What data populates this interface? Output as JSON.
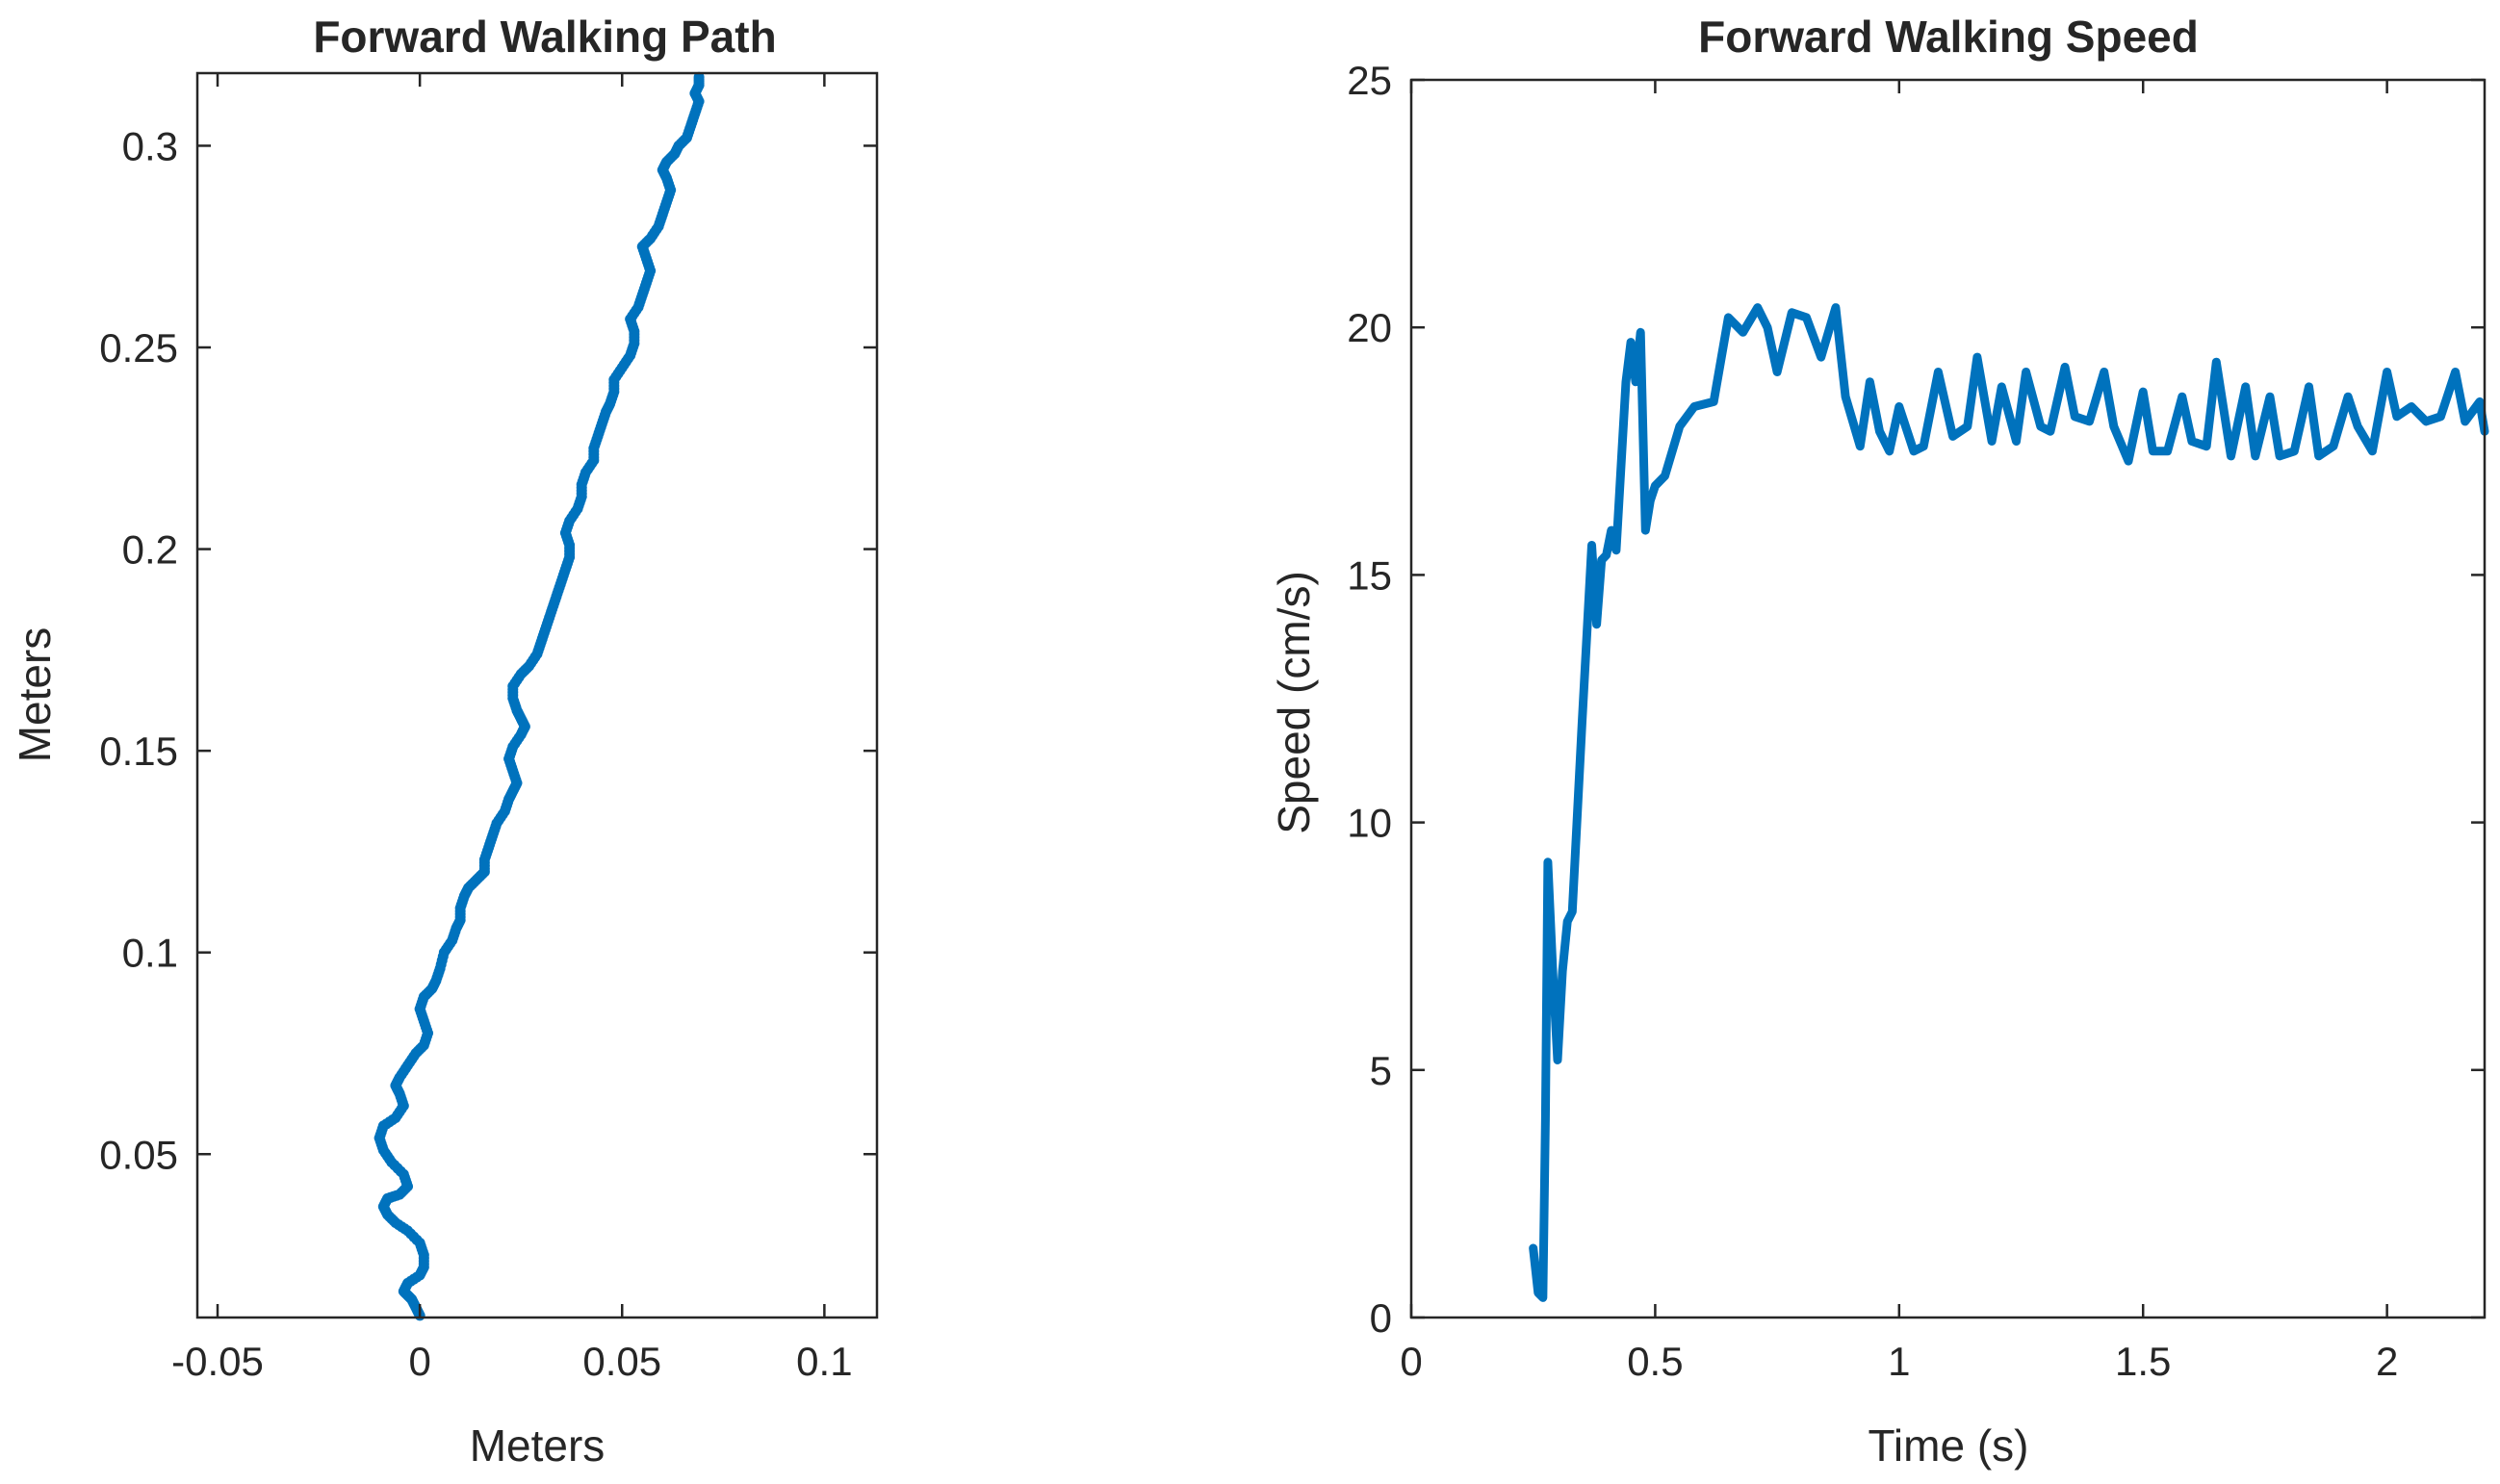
{
  "colors": {
    "series": "#0072BD",
    "axis": "#262626",
    "background": "#ffffff"
  },
  "chart_data": [
    {
      "type": "scatter",
      "title": "Forward Walking Path",
      "xlabel": "Meters",
      "ylabel": "Meters",
      "xlim": [
        -0.055,
        0.113
      ],
      "ylim": [
        0.0095,
        0.318
      ],
      "xticks": [
        -0.05,
        0,
        0.05,
        0.1
      ],
      "xtick_labels": [
        "-0.05",
        "0",
        "0.05",
        "0.1"
      ],
      "yticks": [
        0.05,
        0.1,
        0.15,
        0.2,
        0.25,
        0.3
      ],
      "ytick_labels": [
        "0.05",
        "0.1",
        "0.15",
        "0.2",
        "0.25",
        "0.3"
      ],
      "grid": false,
      "legend": "none",
      "series": [
        {
          "color": "#0072BD",
          "x": [
            0.0,
            -0.001,
            -0.002,
            -0.003,
            -0.004,
            -0.003,
            0.0,
            0.001,
            0.001,
            0.0,
            -0.003,
            -0.006,
            -0.008,
            -0.009,
            -0.008,
            -0.005,
            -0.003,
            -0.004,
            -0.007,
            -0.009,
            -0.01,
            -0.009,
            -0.006,
            -0.004,
            -0.005,
            -0.006,
            -0.005,
            -0.003,
            -0.001,
            0.001,
            0.002,
            0.001,
            0.0,
            0.001,
            0.003,
            0.004,
            0.005,
            0.006,
            0.008,
            0.009,
            0.01,
            0.01,
            0.011,
            0.012,
            0.014,
            0.016,
            0.016,
            0.017,
            0.018,
            0.019,
            0.021,
            0.022,
            0.023,
            0.024,
            0.023,
            0.022,
            0.023,
            0.025,
            0.026,
            0.025,
            0.024,
            0.023,
            0.023,
            0.025,
            0.027,
            0.029,
            0.03,
            0.031,
            0.032,
            0.033,
            0.034,
            0.035,
            0.036,
            0.037,
            0.037,
            0.036,
            0.037,
            0.039,
            0.04,
            0.04,
            0.041,
            0.043,
            0.043,
            0.044,
            0.045,
            0.046,
            0.047,
            0.048,
            0.048,
            0.05,
            0.052,
            0.053,
            0.053,
            0.052,
            0.054,
            0.055,
            0.056,
            0.057,
            0.056,
            0.055,
            0.057,
            0.059,
            0.06,
            0.061,
            0.062,
            0.061,
            0.06,
            0.061,
            0.063,
            0.064,
            0.066,
            0.067,
            0.068,
            0.069,
            0.068,
            0.069,
            0.069
          ],
          "y": [
            0.01,
            0.012,
            0.014,
            0.015,
            0.016,
            0.018,
            0.02,
            0.022,
            0.025,
            0.028,
            0.031,
            0.033,
            0.035,
            0.037,
            0.039,
            0.04,
            0.042,
            0.045,
            0.048,
            0.051,
            0.054,
            0.057,
            0.059,
            0.062,
            0.065,
            0.067,
            0.069,
            0.072,
            0.075,
            0.077,
            0.08,
            0.083,
            0.086,
            0.089,
            0.091,
            0.093,
            0.096,
            0.1,
            0.103,
            0.106,
            0.108,
            0.111,
            0.114,
            0.116,
            0.118,
            0.12,
            0.123,
            0.126,
            0.129,
            0.132,
            0.135,
            0.138,
            0.14,
            0.142,
            0.145,
            0.148,
            0.151,
            0.154,
            0.156,
            0.158,
            0.16,
            0.163,
            0.166,
            0.169,
            0.171,
            0.174,
            0.177,
            0.18,
            0.183,
            0.186,
            0.189,
            0.192,
            0.195,
            0.198,
            0.201,
            0.204,
            0.207,
            0.21,
            0.213,
            0.216,
            0.219,
            0.222,
            0.225,
            0.228,
            0.231,
            0.234,
            0.236,
            0.239,
            0.242,
            0.245,
            0.248,
            0.251,
            0.254,
            0.257,
            0.26,
            0.263,
            0.266,
            0.269,
            0.272,
            0.275,
            0.277,
            0.28,
            0.283,
            0.286,
            0.289,
            0.292,
            0.294,
            0.296,
            0.298,
            0.3,
            0.302,
            0.305,
            0.308,
            0.311,
            0.313,
            0.315,
            0.317
          ]
        }
      ]
    },
    {
      "type": "line",
      "title": "Forward Walking Speed",
      "xlabel": "Time (s)",
      "ylabel": "Speed (cm/s)",
      "xlim": [
        0,
        2.2
      ],
      "ylim": [
        0,
        25
      ],
      "xticks": [
        0,
        0.5,
        1,
        1.5,
        2
      ],
      "xtick_labels": [
        "0",
        "0.5",
        "1",
        "1.5",
        "2"
      ],
      "yticks": [
        0,
        5,
        10,
        15,
        20,
        25
      ],
      "ytick_labels": [
        "0",
        "5",
        "10",
        "15",
        "20",
        "25"
      ],
      "grid": false,
      "legend": "none",
      "series": [
        {
          "color": "#0072BD",
          "x": [
            0.25,
            0.26,
            0.27,
            0.275,
            0.28,
            0.29,
            0.3,
            0.31,
            0.32,
            0.33,
            0.35,
            0.37,
            0.38,
            0.39,
            0.4,
            0.41,
            0.42,
            0.44,
            0.45,
            0.46,
            0.47,
            0.48,
            0.49,
            0.5,
            0.52,
            0.55,
            0.58,
            0.62,
            0.65,
            0.68,
            0.71,
            0.73,
            0.75,
            0.78,
            0.81,
            0.84,
            0.87,
            0.89,
            0.92,
            0.94,
            0.96,
            0.98,
            1.0,
            1.03,
            1.05,
            1.08,
            1.11,
            1.14,
            1.16,
            1.19,
            1.21,
            1.24,
            1.26,
            1.29,
            1.31,
            1.34,
            1.36,
            1.39,
            1.42,
            1.44,
            1.47,
            1.5,
            1.52,
            1.55,
            1.58,
            1.6,
            1.63,
            1.65,
            1.68,
            1.71,
            1.73,
            1.76,
            1.78,
            1.81,
            1.84,
            1.86,
            1.89,
            1.92,
            1.94,
            1.97,
            2.0,
            2.02,
            2.05,
            2.08,
            2.11,
            2.14,
            2.16,
            2.19,
            2.2
          ],
          "y": [
            1.4,
            0.5,
            0.4,
            4.0,
            9.2,
            7.0,
            5.2,
            7.0,
            8.0,
            8.2,
            12.0,
            15.6,
            14.0,
            15.3,
            15.4,
            15.9,
            15.5,
            18.9,
            19.7,
            18.9,
            19.9,
            15.9,
            16.5,
            16.8,
            17.0,
            18.0,
            18.4,
            18.5,
            20.2,
            19.9,
            20.4,
            20.0,
            19.1,
            20.3,
            20.2,
            19.4,
            20.4,
            18.6,
            17.6,
            18.9,
            17.9,
            17.5,
            18.4,
            17.5,
            17.6,
            19.1,
            17.8,
            18.0,
            19.4,
            17.7,
            18.8,
            17.7,
            19.1,
            18.0,
            17.9,
            19.2,
            18.2,
            18.1,
            19.1,
            18.0,
            17.3,
            18.7,
            17.5,
            17.5,
            18.6,
            17.7,
            17.6,
            19.3,
            17.4,
            18.8,
            17.4,
            18.6,
            17.4,
            17.5,
            18.8,
            17.4,
            17.6,
            18.6,
            18.0,
            17.5,
            19.1,
            18.2,
            18.4,
            18.1,
            18.2,
            19.1,
            18.1,
            18.5,
            17.9
          ]
        }
      ]
    }
  ]
}
